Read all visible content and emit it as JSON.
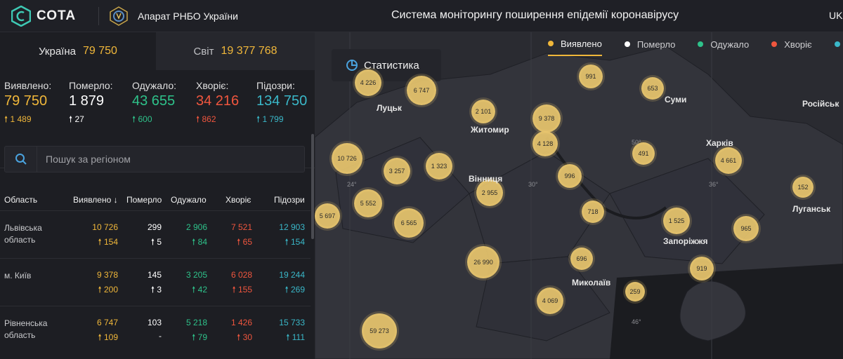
{
  "header": {
    "logo_text": "СОТА",
    "org": "Апарат РНБО України",
    "title": "Система моніторингу поширення епідемії коронавірусу",
    "lang": "UK"
  },
  "scope_tabs": [
    {
      "label": "Україна",
      "value": "79 750"
    },
    {
      "label": "Світ",
      "value": "19 377 768"
    }
  ],
  "summary": [
    {
      "label": "Виявлено:",
      "value": "79 750",
      "delta": "1 489",
      "color": "#f0b73a"
    },
    {
      "label": "Померло:",
      "value": "1 879",
      "delta": "27",
      "color": "#ffffff"
    },
    {
      "label": "Одужало:",
      "value": "43 655",
      "delta": "600",
      "color": "#2ec28a"
    },
    {
      "label": "Хворіє:",
      "value": "34 216",
      "delta": "862",
      "color": "#f0563e"
    },
    {
      "label": "Підозри:",
      "value": "134 750",
      "delta": "1 799",
      "color": "#3ab8c9"
    }
  ],
  "search": {
    "placeholder": "Пошук за регіоном"
  },
  "table": {
    "headers": [
      "Область",
      "Виявлено",
      "Померло",
      "Одужало",
      "Хворіє",
      "Підозри"
    ],
    "rows": [
      {
        "name": "Львівська область",
        "c": [
          "10 726",
          "299",
          "2 906",
          "7 521",
          "12 903"
        ],
        "d": [
          "154",
          "5",
          "84",
          "65",
          "154"
        ]
      },
      {
        "name": "м. Київ",
        "c": [
          "9 378",
          "145",
          "3 205",
          "6 028",
          "19 244"
        ],
        "d": [
          "200",
          "3",
          "42",
          "155",
          "269"
        ]
      },
      {
        "name": "Рівненська область",
        "c": [
          "6 747",
          "103",
          "5 218",
          "1 426",
          "15 733"
        ],
        "d": [
          "109",
          "-",
          "79",
          "30",
          "111"
        ]
      }
    ]
  },
  "map": {
    "stat_button": "Статистика",
    "legend": [
      {
        "label": "Виявлено",
        "color": "#f0b73a"
      },
      {
        "label": "Померло",
        "color": "#ffffff"
      },
      {
        "label": "Одужало",
        "color": "#2ec28a"
      },
      {
        "label": "Хворіє",
        "color": "#f0563e"
      },
      {
        "label": "",
        "color": "#3ab8c9"
      }
    ],
    "bubbles": [
      "4 226",
      "6 747",
      "991",
      "653",
      "2 101",
      "9 378",
      "4 128",
      "10 726",
      "3 257",
      "1 323",
      "491",
      "4 661",
      "996",
      "2 955",
      "5 552",
      "152",
      "5 697",
      "6 565",
      "718",
      "1 525",
      "965",
      "26 990",
      "696",
      "919",
      "4 069",
      "259",
      "59 273"
    ],
    "cities": [
      "Луцьк",
      "Житомир",
      "Суми",
      "Російськ",
      "Харків",
      "Вінниця",
      "Луганськ",
      "Запоріжжя",
      "Миколаїв"
    ],
    "coords": [
      "24°",
      "30°",
      "36°",
      "50°",
      "46°"
    ]
  }
}
